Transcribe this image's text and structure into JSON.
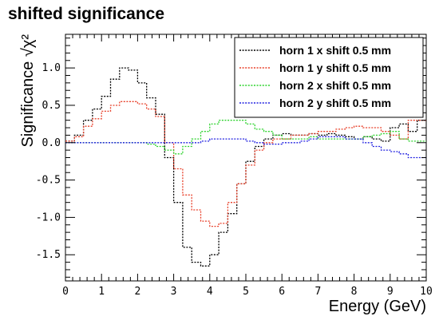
{
  "page_title": "shifted significance",
  "chart_data": {
    "type": "line",
    "title": "shifted significance",
    "xlabel": "Energy (GeV)",
    "ylabel": "Significance",
    "ylabel_symbol": "√χ²",
    "xlim": [
      0,
      10
    ],
    "ylim": [
      -1.85,
      1.45
    ],
    "x_ticks": [
      0,
      1,
      2,
      3,
      4,
      5,
      6,
      7,
      8,
      9,
      10
    ],
    "y_ticks": [
      -1.5,
      -1.0,
      -0.5,
      0.0,
      0.5,
      1.0
    ],
    "y_tick_labels": [
      "-1.5",
      "-1.0",
      "-0.5",
      "0.0",
      "0.5",
      "1.0"
    ],
    "grid": false,
    "legend_position": "top-right",
    "bin_edges": [
      0,
      0.25,
      0.5,
      0.75,
      1,
      1.25,
      1.5,
      1.75,
      2,
      2.25,
      2.5,
      2.75,
      3,
      3.25,
      3.5,
      3.75,
      4,
      4.25,
      4.5,
      4.75,
      5,
      5.25,
      5.5,
      5.75,
      6,
      6.25,
      6.5,
      6.75,
      7,
      7.25,
      7.5,
      7.75,
      8,
      8.25,
      8.5,
      8.75,
      9,
      9.25,
      9.5,
      9.75,
      10
    ],
    "series": [
      {
        "name": "horn 1 x shift 0.5 mm",
        "color": "#000000",
        "values": [
          0.02,
          0.1,
          0.3,
          0.45,
          0.62,
          0.85,
          1.0,
          0.97,
          0.8,
          0.6,
          0.38,
          -0.2,
          -0.8,
          -1.4,
          -1.6,
          -1.65,
          -1.5,
          -1.2,
          -0.95,
          -0.55,
          -0.25,
          -0.05,
          0.05,
          0.1,
          0.12,
          0.1,
          0.1,
          0.12,
          0.1,
          0.12,
          0.1,
          0.08,
          0.05,
          0.08,
          0.05,
          0.02,
          0.2,
          0.25,
          0.15,
          0.3
        ]
      },
      {
        "name": "horn 1 y shift 0.5 mm",
        "color": "#e8402a",
        "values": [
          0.02,
          0.08,
          0.22,
          0.32,
          0.42,
          0.5,
          0.55,
          0.55,
          0.52,
          0.45,
          0.35,
          0.0,
          -0.35,
          -0.7,
          -0.9,
          -1.05,
          -1.12,
          -1.08,
          -0.8,
          -0.55,
          -0.3,
          -0.1,
          0.0,
          0.05,
          0.05,
          0.1,
          0.1,
          0.12,
          0.15,
          0.15,
          0.18,
          0.2,
          0.22,
          0.2,
          0.2,
          0.15,
          0.1,
          0.05,
          0.3,
          0.3
        ]
      },
      {
        "name": "horn 2 x shift 0.5 mm",
        "color": "#2ed32e",
        "values": [
          0.0,
          0.0,
          0.0,
          0.0,
          0.0,
          0.0,
          0.0,
          0.0,
          0.0,
          -0.02,
          -0.05,
          -0.1,
          -0.15,
          -0.05,
          0.05,
          0.15,
          0.25,
          0.3,
          0.3,
          0.3,
          0.25,
          0.18,
          0.15,
          0.1,
          0.05,
          0.05,
          0.05,
          0.08,
          0.05,
          0.05,
          0.05,
          0.05,
          0.05,
          0.08,
          0.1,
          0.12,
          0.15,
          0.05,
          0.02,
          0.02
        ]
      },
      {
        "name": "horn 2 y shift 0.5 mm",
        "color": "#2020e0",
        "values": [
          0.0,
          0.0,
          0.0,
          0.0,
          0.0,
          0.0,
          0.0,
          0.0,
          0.0,
          0.0,
          0.0,
          0.0,
          0.0,
          0.0,
          0.0,
          0.02,
          0.05,
          0.05,
          0.05,
          0.05,
          0.02,
          0.0,
          -0.02,
          -0.02,
          0.0,
          0.0,
          0.02,
          0.05,
          0.08,
          0.08,
          0.08,
          0.05,
          0.05,
          0.0,
          -0.05,
          -0.1,
          -0.12,
          -0.15,
          -0.2,
          -0.2
        ]
      }
    ]
  }
}
